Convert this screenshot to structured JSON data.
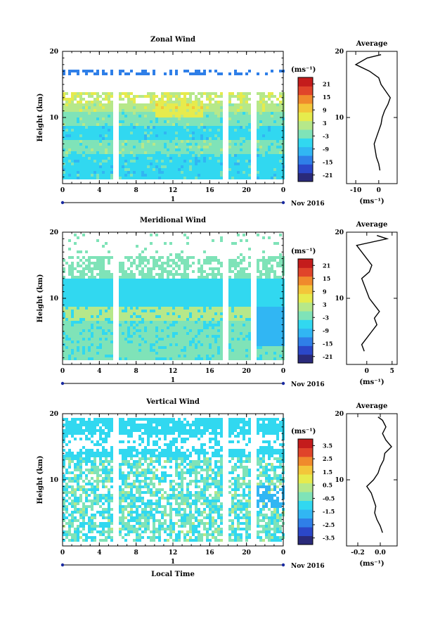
{
  "colors": {
    "colormap": [
      "#2a2a7a",
      "#2b47c9",
      "#2f7fe8",
      "#31b6f3",
      "#31d8f0",
      "#7fe3b8",
      "#b6e88a",
      "#e6eb4d",
      "#f3c63a",
      "#f08a2c",
      "#e0442a",
      "#c41c1c"
    ]
  },
  "chart_data": [
    {
      "type": "heatmap",
      "title": "Zonal Wind",
      "ylabel": "Height (km)",
      "ylim": [
        0,
        20
      ],
      "yticks": [
        "10",
        "20"
      ],
      "xlim": [
        0,
        24
      ],
      "xticks": [
        "0",
        "4",
        "8",
        "12",
        "16",
        "20",
        "0"
      ],
      "day_label": "1",
      "date_label": "Nov 2016",
      "colorbar": {
        "unit": "(ms⁻¹)",
        "ticks": [
          "21",
          "15",
          "9",
          "3",
          "-3",
          "-9",
          "-15",
          "-21"
        ],
        "range": [
          -24,
          24
        ]
      },
      "average_profile": {
        "title": "Average",
        "xlabel": "(ms⁻¹)",
        "xticks": [
          "-10",
          "0"
        ],
        "xlim": [
          -14,
          8
        ],
        "yticks": [
          "10",
          "20"
        ],
        "height": [
          2,
          3,
          4,
          5,
          6,
          7,
          8,
          9,
          10,
          11,
          12,
          13,
          14,
          15,
          16,
          17,
          18,
          19,
          19.5
        ],
        "value": [
          0.5,
          0,
          -1,
          -1.5,
          -2,
          -1,
          0,
          1,
          1.5,
          2.5,
          4,
          5,
          3,
          1,
          0,
          -4,
          -10,
          -5,
          1
        ]
      }
    },
    {
      "type": "heatmap",
      "title": "Meridional Wind",
      "ylabel": "Height (km)",
      "ylim": [
        0,
        20
      ],
      "yticks": [
        "10",
        "20"
      ],
      "xlim": [
        0,
        24
      ],
      "xticks": [
        "0",
        "4",
        "8",
        "12",
        "16",
        "20",
        "0"
      ],
      "day_label": "1",
      "date_label": "Nov 2016",
      "colorbar": {
        "unit": "(ms⁻¹)",
        "ticks": [
          "21",
          "15",
          "9",
          "3",
          "-3",
          "-9",
          "-15",
          "-21"
        ],
        "range": [
          -24,
          24
        ]
      },
      "average_profile": {
        "title": "Average",
        "xlabel": "(ms⁻¹)",
        "xticks": [
          "0",
          "5"
        ],
        "xlim": [
          -4,
          6
        ],
        "yticks": [
          "10",
          "20"
        ],
        "height": [
          2,
          3,
          4,
          5,
          6,
          7,
          8,
          9,
          10,
          11,
          12,
          13,
          14,
          15,
          16,
          17,
          18,
          19,
          19.5
        ],
        "value": [
          -0.5,
          -1,
          0,
          1,
          2,
          1.5,
          2.5,
          1.5,
          0.5,
          0,
          -0.5,
          -1,
          0.5,
          1,
          0,
          -1,
          -2,
          4,
          2
        ]
      }
    },
    {
      "type": "heatmap",
      "title": "Vertical Wind",
      "ylabel": "Height (km)",
      "xlabel": "Local Time",
      "ylim": [
        0,
        20
      ],
      "yticks": [
        "10",
        "20"
      ],
      "xlim": [
        0,
        24
      ],
      "xticks": [
        "0",
        "4",
        "8",
        "12",
        "16",
        "20",
        "0"
      ],
      "day_label": "1",
      "date_label": "Nov 2016",
      "colorbar": {
        "unit": "(ms⁻¹)",
        "ticks": [
          "3.5",
          "2.5",
          "1.5",
          "0.5",
          "-0.5",
          "-1.5",
          "-2.5",
          "-3.5"
        ],
        "range": [
          -4,
          4
        ]
      },
      "average_profile": {
        "title": "Average",
        "xlabel": "(ms⁻¹)",
        "xticks": [
          "-0.2",
          "0.0"
        ],
        "xlim": [
          -0.3,
          0.15
        ],
        "yticks": [
          "10",
          "20"
        ],
        "height": [
          2,
          3,
          4,
          5,
          6,
          7,
          8,
          9,
          10,
          11,
          12,
          13,
          14,
          15,
          16,
          17,
          18,
          19,
          19.5
        ],
        "value": [
          0.02,
          0.0,
          -0.03,
          -0.05,
          -0.04,
          -0.06,
          -0.08,
          -0.12,
          -0.06,
          -0.02,
          0.0,
          0.03,
          0.04,
          0.1,
          0.05,
          0.02,
          0.05,
          0.02,
          -0.02
        ]
      }
    }
  ]
}
